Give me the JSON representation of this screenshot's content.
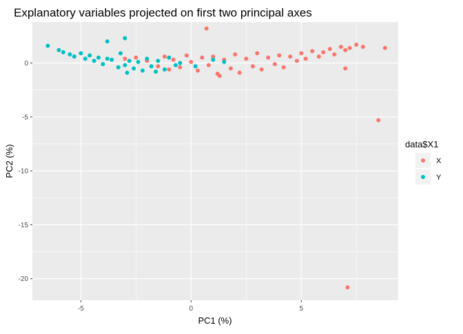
{
  "chart_data": {
    "type": "scatter",
    "title": "Explanatory variables  projected on first two principal axes",
    "xlabel": "PC1 (%)",
    "ylabel": "PC2 (%)",
    "xlim": [
      -7.2,
      9.4
    ],
    "ylim": [
      -22.0,
      3.8
    ],
    "x_ticks": [
      -5,
      0,
      5
    ],
    "x_tick_labels": [
      "-5",
      "0",
      "5"
    ],
    "y_ticks": [
      0,
      -5,
      -10,
      -15,
      -20
    ],
    "y_tick_labels": [
      "0",
      "-5",
      "-10",
      "-15",
      "-20"
    ],
    "grid": true,
    "legend": {
      "title": "data$X1",
      "position": "right",
      "entries": [
        "X",
        "Y"
      ]
    },
    "series": [
      {
        "name": "X",
        "color": "#F8766D",
        "points": [
          [
            -3.0,
            0.4
          ],
          [
            -2.5,
            0.5
          ],
          [
            -2.0,
            0.2
          ],
          [
            -1.5,
            -0.3
          ],
          [
            -1.2,
            0.6
          ],
          [
            -1.0,
            -0.6
          ],
          [
            -0.8,
            0.3
          ],
          [
            -0.5,
            -0.4
          ],
          [
            -0.2,
            0.7
          ],
          [
            0.0,
            0.1
          ],
          [
            0.3,
            -0.7
          ],
          [
            0.5,
            0.5
          ],
          [
            0.7,
            3.2
          ],
          [
            0.8,
            -0.2
          ],
          [
            1.0,
            0.6
          ],
          [
            1.2,
            -1.0
          ],
          [
            1.3,
            -1.2
          ],
          [
            1.5,
            0.3
          ],
          [
            1.8,
            -0.5
          ],
          [
            2.0,
            0.8
          ],
          [
            2.2,
            -0.9
          ],
          [
            2.5,
            0.4
          ],
          [
            2.8,
            -0.3
          ],
          [
            3.0,
            0.9
          ],
          [
            3.2,
            -0.6
          ],
          [
            3.5,
            0.5
          ],
          [
            3.8,
            -0.1
          ],
          [
            4.0,
            0.7
          ],
          [
            4.2,
            -0.4
          ],
          [
            4.5,
            0.6
          ],
          [
            4.8,
            0.2
          ],
          [
            5.0,
            0.9
          ],
          [
            5.2,
            0.4
          ],
          [
            5.5,
            1.1
          ],
          [
            5.8,
            0.6
          ],
          [
            6.0,
            1.0
          ],
          [
            6.3,
            1.3
          ],
          [
            6.5,
            0.8
          ],
          [
            6.8,
            1.5
          ],
          [
            7.0,
            1.2
          ],
          [
            7.2,
            1.4
          ],
          [
            7.5,
            1.7
          ],
          [
            7.8,
            1.5
          ],
          [
            8.8,
            1.4
          ],
          [
            7.0,
            -0.5
          ],
          [
            8.5,
            -5.3
          ],
          [
            7.1,
            -20.8
          ]
        ]
      },
      {
        "name": "Y",
        "color": "#00BFC4",
        "points": [
          [
            -6.5,
            1.6
          ],
          [
            -6.0,
            1.2
          ],
          [
            -5.8,
            1.0
          ],
          [
            -5.5,
            0.8
          ],
          [
            -5.3,
            0.6
          ],
          [
            -5.0,
            0.9
          ],
          [
            -4.8,
            0.4
          ],
          [
            -4.6,
            0.7
          ],
          [
            -4.4,
            0.2
          ],
          [
            -4.2,
            0.5
          ],
          [
            -4.0,
            -0.1
          ],
          [
            -3.8,
            0.4
          ],
          [
            -3.6,
            0.3
          ],
          [
            -3.8,
            2.0
          ],
          [
            -3.0,
            2.3
          ],
          [
            -3.2,
            0.9
          ],
          [
            -3.0,
            -0.2
          ],
          [
            -2.8,
            0.2
          ],
          [
            -2.6,
            -0.5
          ],
          [
            -2.4,
            0.1
          ],
          [
            -2.2,
            -0.7
          ],
          [
            -2.0,
            0.4
          ],
          [
            -1.8,
            -0.3
          ],
          [
            -1.5,
            0.2
          ],
          [
            -1.2,
            -0.6
          ],
          [
            -1.0,
            0.5
          ],
          [
            -0.5,
            0.0
          ],
          [
            0.2,
            -0.3
          ],
          [
            1.0,
            0.3
          ],
          [
            1.5,
            0.1
          ],
          [
            -2.9,
            -0.9
          ],
          [
            -1.6,
            -0.8
          ],
          [
            -3.3,
            -0.4
          ],
          [
            -0.7,
            -0.2
          ]
        ]
      }
    ]
  }
}
